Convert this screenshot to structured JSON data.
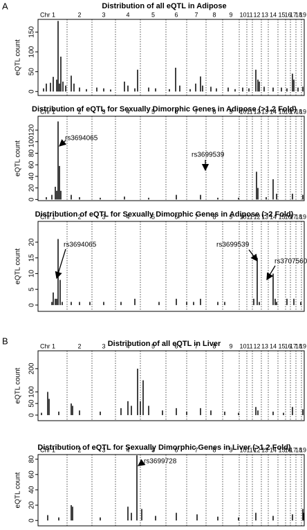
{
  "panel_labels": [
    "A",
    "B"
  ],
  "chart_data": [
    {
      "type": "bar",
      "title": "Distribution of all eQTL in Adipose",
      "y_label": "eQTL count",
      "color": "#000000",
      "chromosomes": [
        "Chr 1",
        "2",
        "3",
        "4",
        "5",
        "6",
        "7",
        "8",
        "9",
        "10",
        "11",
        "12",
        "13",
        "14",
        "15",
        "16",
        "17",
        "18",
        "19"
      ],
      "x": [
        8,
        12,
        18,
        22,
        27,
        29,
        31,
        33,
        36,
        40,
        48,
        52,
        60,
        70,
        85,
        95,
        105,
        125,
        130,
        140,
        144,
        160,
        170,
        190,
        199,
        205,
        220,
        228,
        235,
        238,
        250,
        258,
        275,
        285,
        296,
        305,
        315,
        318,
        320,
        327,
        340,
        352,
        360,
        368,
        370,
        376,
        383
      ],
      "values": [
        8,
        20,
        22,
        37,
        30,
        178,
        20,
        88,
        25,
        15,
        40,
        20,
        10,
        6,
        10,
        8,
        5,
        25,
        15,
        8,
        55,
        10,
        8,
        6,
        60,
        15,
        6,
        20,
        38,
        15,
        12,
        8,
        10,
        6,
        10,
        8,
        55,
        30,
        25,
        12,
        10,
        10,
        8,
        45,
        30,
        10,
        12
      ],
      "xlim": [
        0,
        385
      ],
      "ylim": [
        -10,
        182
      ],
      "yticks": [
        0,
        50,
        100,
        150
      ],
      "annotations": []
    },
    {
      "type": "bar",
      "title": "Distribution of eQTL for Sexually Dimorphic Genes in Adipose (>1.2 Fold)",
      "y_label": "eQTL count",
      "color": "#000000",
      "chromosomes": [
        "Chr 1",
        "2",
        "3",
        "4",
        "5",
        "6",
        "7",
        "8",
        "9",
        "10",
        "11",
        "12",
        "13",
        "14",
        "15",
        "16",
        "17",
        "18",
        "19"
      ],
      "x": [
        12,
        20,
        25,
        27,
        29,
        31,
        33,
        48,
        60,
        90,
        125,
        160,
        200,
        235,
        260,
        290,
        316,
        318,
        330,
        340,
        345,
        368,
        383
      ],
      "values": [
        4,
        8,
        22,
        15,
        135,
        58,
        15,
        8,
        4,
        3,
        5,
        3,
        8,
        8,
        3,
        3,
        48,
        20,
        4,
        35,
        10,
        10,
        8
      ],
      "xlim": [
        0,
        385
      ],
      "ylim": [
        -2,
        144
      ],
      "yticks": [
        0,
        20,
        40,
        60,
        80,
        100,
        120
      ],
      "annotations": [
        "rs3694065",
        "rs3699539"
      ]
    },
    {
      "type": "bar",
      "title": "Distribution of eQTL for Sexually Dimorphic Genes in Adipose (>2 Fold)",
      "y_label": "eQTL count",
      "color": "#000000",
      "chromosomes": [
        "Chr 1",
        "2",
        "3",
        "4",
        "5",
        "6",
        "7",
        "8",
        "9",
        "10",
        "11",
        "12",
        "13",
        "14",
        "15",
        "16",
        "17",
        "18",
        "19"
      ],
      "x": [
        20,
        22,
        25,
        27,
        29,
        32,
        35,
        48,
        60,
        75,
        95,
        120,
        140,
        175,
        200,
        215,
        225,
        235,
        260,
        270,
        312,
        317,
        320,
        340,
        343,
        345,
        360,
        370,
        380
      ],
      "values": [
        1,
        4,
        2,
        2,
        21,
        8,
        1,
        1,
        1,
        1,
        1,
        1,
        2,
        1,
        2,
        1,
        1,
        2,
        1,
        1,
        2,
        15,
        1,
        10,
        2,
        1,
        2,
        2,
        1
      ],
      "xlim": [
        0,
        385
      ],
      "ylim": [
        -2,
        26.6
      ],
      "yticks": [
        0,
        5,
        10,
        15,
        20
      ],
      "annotations": [
        "rs3694065",
        "rs3699539",
        "rs3707560"
      ]
    },
    {
      "type": "bar",
      "title": "Distribution of all eQTL in Liver",
      "y_label": "eQTL count",
      "color": "#000000",
      "chromosomes": [
        "Chr 1",
        "2",
        "3",
        "4",
        "5",
        "6",
        "7",
        "8",
        "9",
        "10",
        "11",
        "12",
        "13",
        "14",
        "15",
        "16",
        "17",
        "18",
        "19"
      ],
      "x": [
        5,
        14,
        16,
        30,
        48,
        50,
        60,
        90,
        120,
        130,
        135,
        144,
        148,
        152,
        160,
        180,
        200,
        215,
        235,
        250,
        270,
        290,
        315,
        318,
        340,
        355,
        368,
        383
      ],
      "values": [
        10,
        100,
        70,
        15,
        50,
        40,
        20,
        15,
        30,
        60,
        40,
        200,
        60,
        150,
        40,
        20,
        30,
        15,
        30,
        20,
        15,
        10,
        35,
        20,
        15,
        10,
        35,
        25
      ],
      "xlim": [
        0,
        385
      ],
      "ylim": [
        -24,
        277
      ],
      "yticks": [
        0,
        50,
        100,
        200
      ],
      "annotations": []
    },
    {
      "type": "bar",
      "title": "Distribution of eQTL for Sexually Dimorphic Genes in Liver (>1.2 Fold)",
      "y_label": "eQTL count",
      "color": "#000000",
      "chromosomes": [
        "Chr 1",
        "2",
        "3",
        "4",
        "5",
        "6",
        "7",
        "8",
        "9",
        "10",
        "11",
        "12",
        "13",
        "14",
        "15",
        "16",
        "17",
        "18",
        "19"
      ],
      "x": [
        14,
        30,
        48,
        50,
        90,
        130,
        135,
        143,
        150,
        170,
        200,
        230,
        260,
        290,
        315,
        340,
        368,
        383,
        384
      ],
      "values": [
        7,
        4,
        20,
        18,
        4,
        18,
        10,
        85,
        15,
        6,
        10,
        8,
        5,
        4,
        10,
        6,
        8,
        15,
        10
      ],
      "xlim": [
        0,
        385
      ],
      "ylim": [
        -7,
        86
      ],
      "yticks": [
        0,
        20,
        40,
        60,
        80
      ],
      "annotations": [
        "rs3699728"
      ]
    }
  ]
}
